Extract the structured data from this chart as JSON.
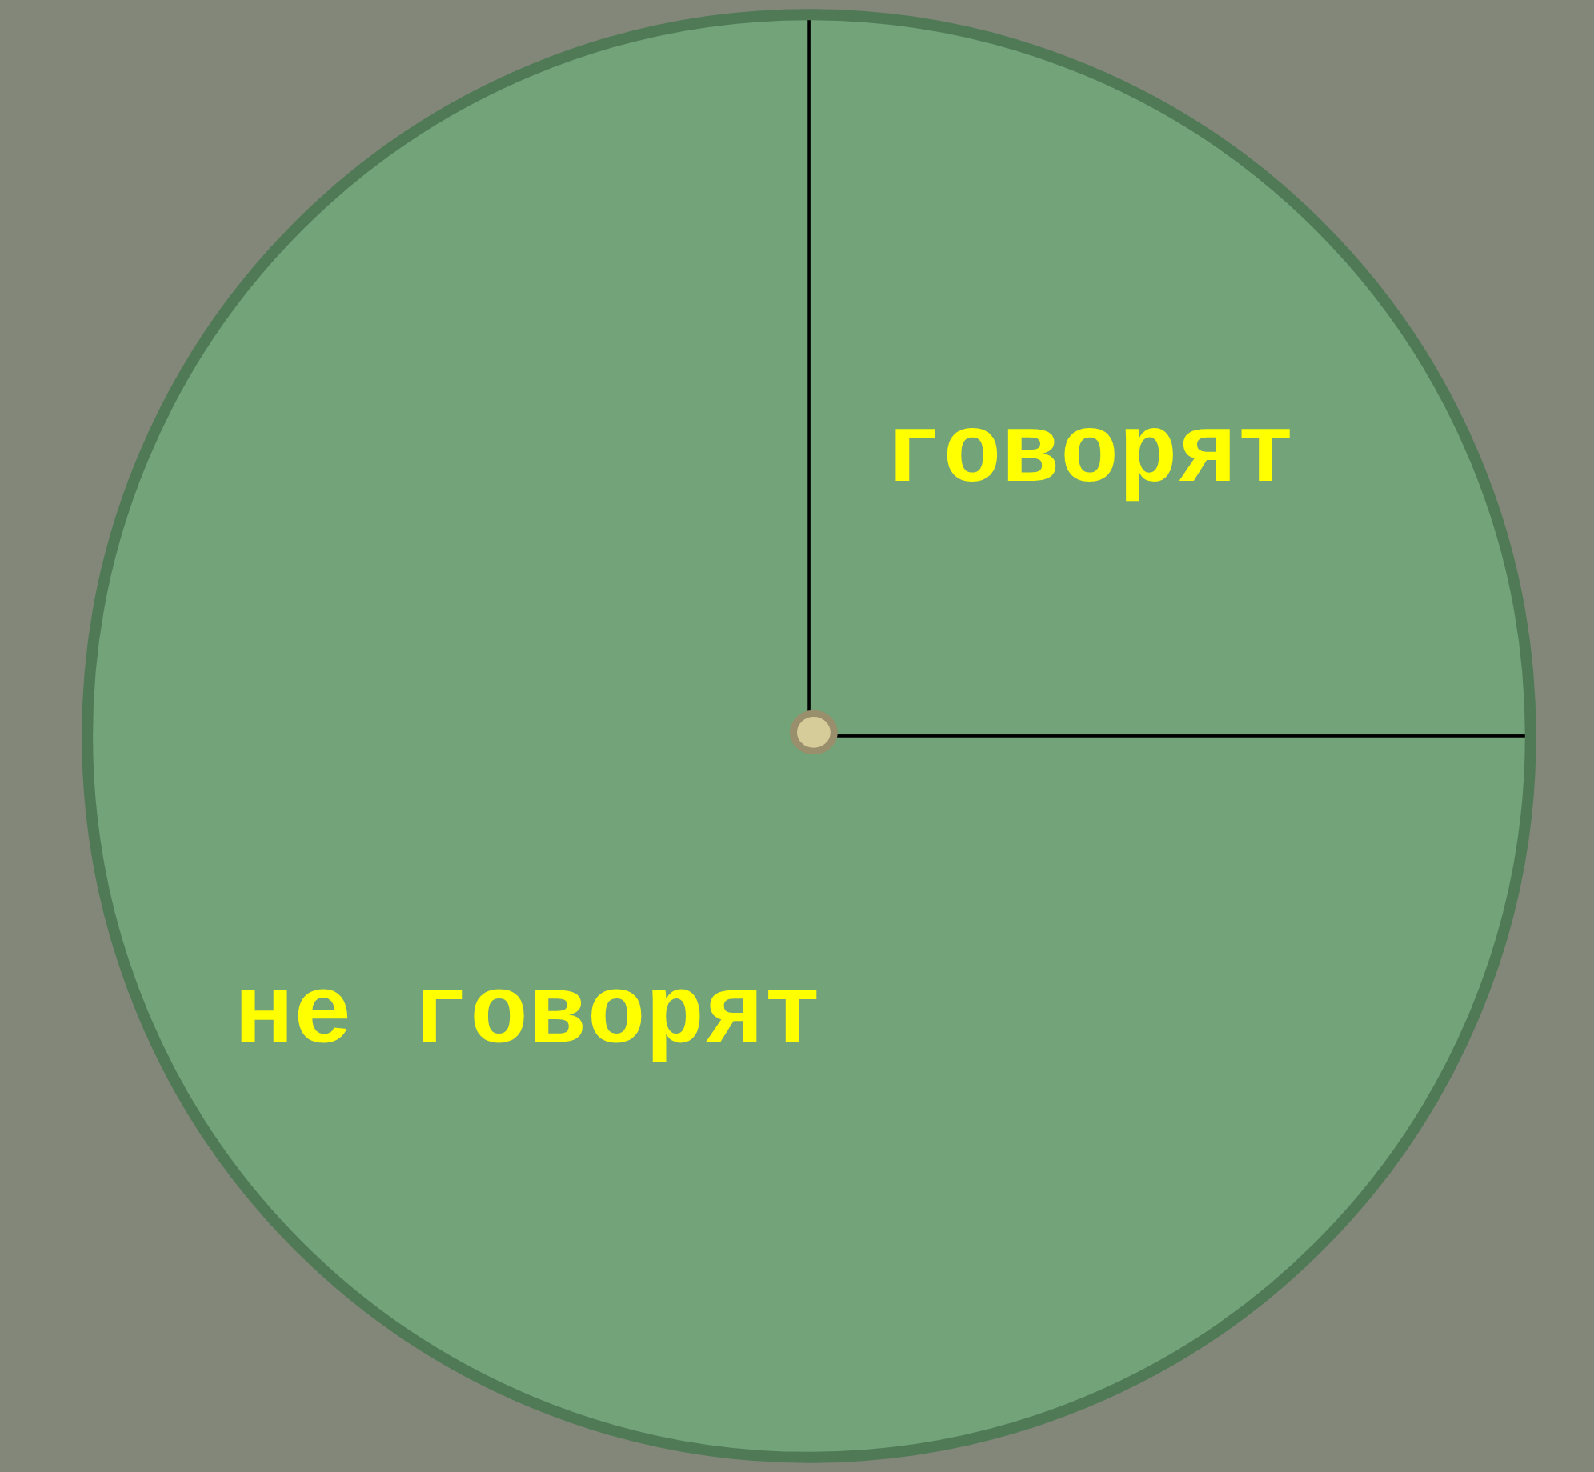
{
  "chart_data": {
    "type": "pie",
    "categories": [
      "говорят",
      "не говорят"
    ],
    "values": [
      25,
      75
    ],
    "colors": [
      "#72a379",
      "#72a379"
    ]
  }
}
